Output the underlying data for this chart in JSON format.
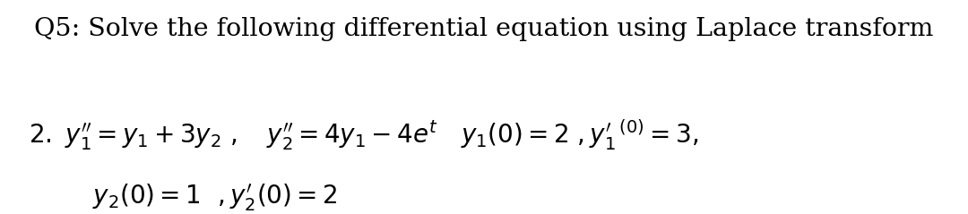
{
  "background_color": "#ffffff",
  "title_text": "Q5: Solve the following differential equation using Laplace transform",
  "title_fontsize": 20.5,
  "title_fontfamily": "serif",
  "line1_text": "$2.\\ y_1'' = y_1 + 3y_2\\ ,\\quad y_2'' = 4y_1 - 4e^t\\quad y_1(0) = 2\\ ,y_1'^{\\,(0)} = 3,$",
  "line2_text": "$y_2(0) = 1\\ \\ ,y_2'(0) = 2$",
  "body_fontsize": 20,
  "body_fontfamily": "serif",
  "fig_width": 10.8,
  "fig_height": 2.39,
  "dpi": 100
}
